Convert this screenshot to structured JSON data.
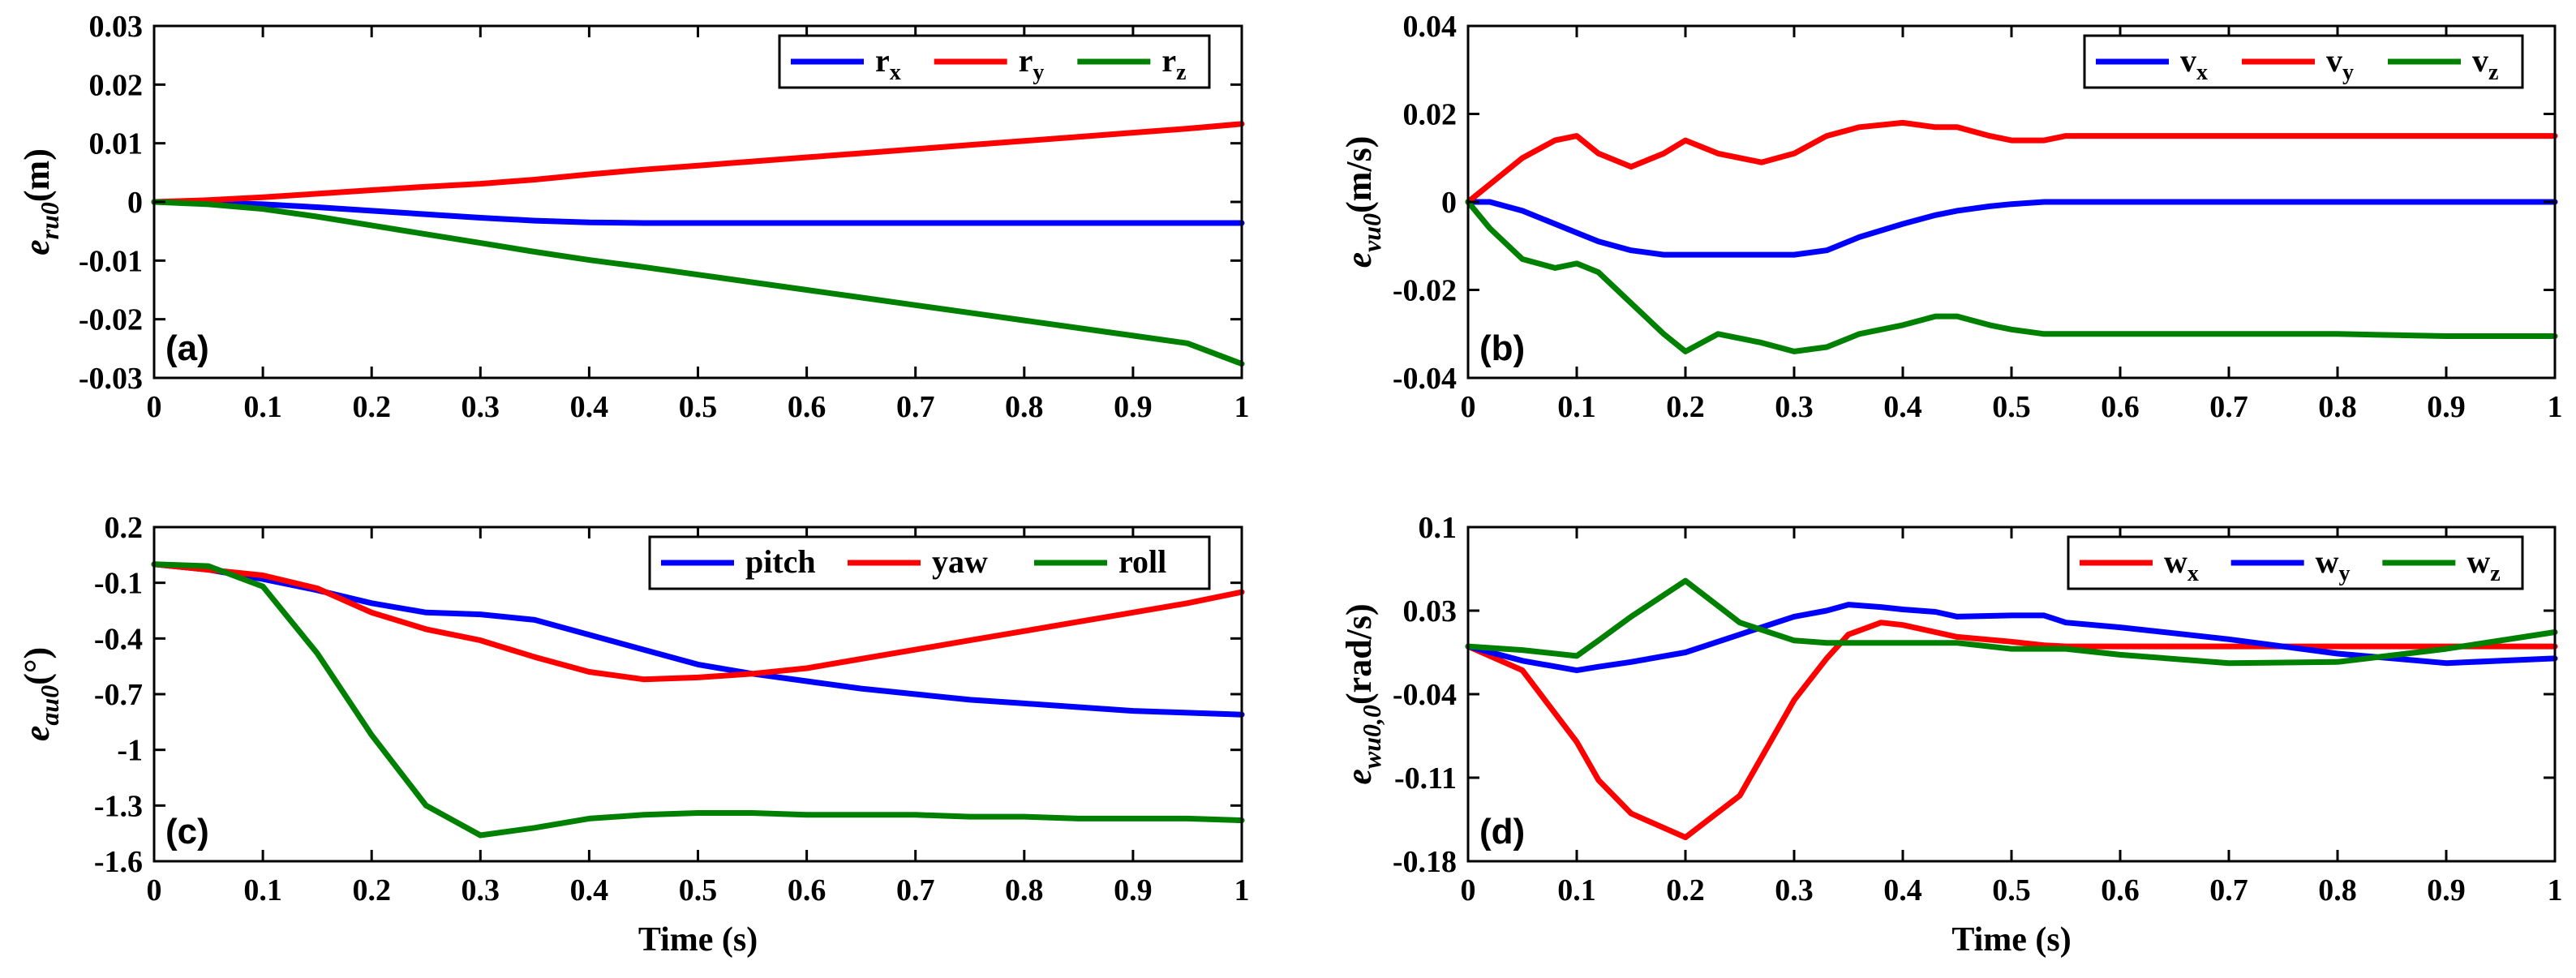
{
  "chart_data": [
    {
      "type": "line",
      "panel_label": "(a)",
      "ylabel_main": "e",
      "ylabel_sub": "ru0",
      "ylabel_unit": "(m)",
      "xlabel": "",
      "xlim": [
        0,
        1
      ],
      "ylim": [
        -0.03,
        0.03
      ],
      "xticks": [
        "0",
        "0.1",
        "0.2",
        "0.3",
        "0.4",
        "0.5",
        "0.6",
        "0.7",
        "0.8",
        "0.9",
        "1"
      ],
      "yticks": [
        "0.03",
        "0.02",
        "0.01",
        "0",
        "-0.01",
        "-0.02",
        "-0.03"
      ],
      "ytick_values": [
        0.03,
        0.02,
        0.01,
        0,
        -0.01,
        -0.02,
        -0.03
      ],
      "legend_position": "top-right",
      "x": [
        0,
        0.05,
        0.1,
        0.15,
        0.2,
        0.25,
        0.3,
        0.35,
        0.4,
        0.45,
        0.5,
        0.55,
        0.6,
        0.65,
        0.7,
        0.75,
        0.8,
        0.85,
        0.9,
        0.95,
        1
      ],
      "series": [
        {
          "name": "r",
          "sub": "x",
          "color": "#0000ff",
          "values": [
            0,
            -0.0001,
            -0.0004,
            -0.0009,
            -0.0015,
            -0.0021,
            -0.0027,
            -0.0032,
            -0.0035,
            -0.0036,
            -0.0036,
            -0.0036,
            -0.0036,
            -0.0036,
            -0.0036,
            -0.0036,
            -0.0036,
            -0.0036,
            -0.0036,
            -0.0036,
            -0.0036
          ]
        },
        {
          "name": "r",
          "sub": "y",
          "color": "#ff0000",
          "values": [
            0,
            0.0003,
            0.0008,
            0.0014,
            0.002,
            0.0026,
            0.0031,
            0.0038,
            0.0047,
            0.0055,
            0.0062,
            0.0069,
            0.0076,
            0.0083,
            0.009,
            0.0097,
            0.0104,
            0.0111,
            0.0118,
            0.0125,
            0.0133
          ]
        },
        {
          "name": "r",
          "sub": "z",
          "color": "#008000",
          "values": [
            0,
            -0.0004,
            -0.0012,
            -0.0025,
            -0.004,
            -0.0055,
            -0.007,
            -0.0085,
            -0.0099,
            -0.0111,
            -0.0124,
            -0.0137,
            -0.015,
            -0.0163,
            -0.0176,
            -0.0189,
            -0.0202,
            -0.0215,
            -0.0228,
            -0.0241,
            -0.0276
          ]
        }
      ]
    },
    {
      "type": "line",
      "panel_label": "(b)",
      "ylabel_main": "e",
      "ylabel_sub": "vu0",
      "ylabel_unit": "(m/s)",
      "xlabel": "",
      "xlim": [
        0,
        1
      ],
      "ylim": [
        -0.04,
        0.04
      ],
      "xticks": [
        "0",
        "0.1",
        "0.2",
        "0.3",
        "0.4",
        "0.5",
        "0.6",
        "0.7",
        "0.8",
        "0.9",
        "1"
      ],
      "yticks": [
        "0.04",
        "0.02",
        "0",
        "-0.02",
        "-0.04"
      ],
      "ytick_values": [
        0.04,
        0.02,
        0,
        -0.02,
        -0.04
      ],
      "legend_position": "top-right",
      "x": [
        0,
        0.02,
        0.05,
        0.08,
        0.1,
        0.12,
        0.15,
        0.18,
        0.2,
        0.23,
        0.27,
        0.3,
        0.33,
        0.36,
        0.4,
        0.43,
        0.45,
        0.48,
        0.5,
        0.53,
        0.55,
        0.6,
        0.7,
        0.8,
        0.9,
        1
      ],
      "series": [
        {
          "name": "v",
          "sub": "x",
          "color": "#0000ff",
          "values": [
            0,
            0.0,
            -0.002,
            -0.005,
            -0.007,
            -0.009,
            -0.011,
            -0.012,
            -0.012,
            -0.012,
            -0.012,
            -0.012,
            -0.011,
            -0.008,
            -0.005,
            -0.003,
            -0.002,
            -0.001,
            -0.0005,
            0,
            0,
            0,
            0,
            0,
            0,
            0
          ]
        },
        {
          "name": "v",
          "sub": "y",
          "color": "#ff0000",
          "values": [
            0,
            0.004,
            0.01,
            0.014,
            0.015,
            0.011,
            0.008,
            0.011,
            0.014,
            0.011,
            0.009,
            0.011,
            0.015,
            0.017,
            0.018,
            0.017,
            0.017,
            0.015,
            0.014,
            0.014,
            0.015,
            0.015,
            0.015,
            0.015,
            0.015,
            0.015
          ]
        },
        {
          "name": "v",
          "sub": "z",
          "color": "#008000",
          "values": [
            0,
            -0.006,
            -0.013,
            -0.015,
            -0.014,
            -0.016,
            -0.023,
            -0.03,
            -0.034,
            -0.03,
            -0.032,
            -0.034,
            -0.033,
            -0.03,
            -0.028,
            -0.026,
            -0.026,
            -0.028,
            -0.029,
            -0.03,
            -0.03,
            -0.03,
            -0.03,
            -0.03,
            -0.0305,
            -0.0305
          ]
        }
      ]
    },
    {
      "type": "line",
      "panel_label": "(c)",
      "ylabel_main": "e",
      "ylabel_sub": "au0",
      "ylabel_unit": "(°)",
      "xlabel": "Time (s)",
      "xlim": [
        0,
        1
      ],
      "ylim": [
        -1.6,
        0.2
      ],
      "xticks": [
        "0",
        "0.1",
        "0.2",
        "0.3",
        "0.4",
        "0.5",
        "0.6",
        "0.7",
        "0.8",
        "0.9",
        "1"
      ],
      "yticks": [
        "0.2",
        "-0.1",
        "-0.4",
        "-0.7",
        "-1",
        "-1.3",
        "-1.6"
      ],
      "ytick_values": [
        0.2,
        -0.1,
        -0.4,
        -0.7,
        -1.0,
        -1.3,
        -1.6
      ],
      "legend_position": "top-right",
      "x": [
        0,
        0.05,
        0.1,
        0.15,
        0.2,
        0.25,
        0.3,
        0.35,
        0.4,
        0.45,
        0.5,
        0.55,
        0.6,
        0.65,
        0.7,
        0.75,
        0.8,
        0.85,
        0.9,
        0.95,
        1
      ],
      "series": [
        {
          "name": "pitch",
          "sub": "",
          "color": "#0000ff",
          "values": [
            0,
            -0.03,
            -0.08,
            -0.14,
            -0.21,
            -0.26,
            -0.27,
            -0.3,
            -0.38,
            -0.46,
            -0.54,
            -0.59,
            -0.63,
            -0.67,
            -0.7,
            -0.73,
            -0.75,
            -0.77,
            -0.79,
            -0.8,
            -0.81
          ]
        },
        {
          "name": "yaw",
          "sub": "",
          "color": "#ff0000",
          "values": [
            0,
            -0.03,
            -0.06,
            -0.13,
            -0.26,
            -0.35,
            -0.41,
            -0.5,
            -0.58,
            -0.62,
            -0.61,
            -0.59,
            -0.56,
            -0.51,
            -0.46,
            -0.41,
            -0.36,
            -0.31,
            -0.26,
            -0.21,
            -0.15
          ]
        },
        {
          "name": "roll",
          "sub": "",
          "color": "#008000",
          "values": [
            0,
            -0.01,
            -0.12,
            -0.48,
            -0.92,
            -1.3,
            -1.46,
            -1.42,
            -1.37,
            -1.35,
            -1.34,
            -1.34,
            -1.35,
            -1.35,
            -1.35,
            -1.36,
            -1.36,
            -1.37,
            -1.37,
            -1.37,
            -1.38
          ]
        }
      ]
    },
    {
      "type": "line",
      "panel_label": "(d)",
      "ylabel_main": "e",
      "ylabel_sub": "wu0,0",
      "ylabel_unit": "(rad/s)",
      "xlabel": "Time (s)",
      "xlim": [
        0,
        1
      ],
      "ylim": [
        -0.18,
        0.1
      ],
      "xticks": [
        "0",
        "0.1",
        "0.2",
        "0.3",
        "0.4",
        "0.5",
        "0.6",
        "0.7",
        "0.8",
        "0.9",
        "1"
      ],
      "yticks": [
        "0.1",
        "0.03",
        "-0.04",
        "-0.11",
        "-0.18"
      ],
      "ytick_values": [
        0.1,
        0.03,
        -0.04,
        -0.11,
        -0.18
      ],
      "legend_position": "top-right",
      "x": [
        0,
        0.05,
        0.1,
        0.12,
        0.15,
        0.2,
        0.25,
        0.3,
        0.33,
        0.35,
        0.38,
        0.4,
        0.43,
        0.45,
        0.5,
        0.53,
        0.55,
        0.6,
        0.7,
        0.8,
        0.9,
        1
      ],
      "series": [
        {
          "name": "w",
          "sub": "x",
          "color": "#ff0000",
          "values": [
            0,
            -0.02,
            -0.08,
            -0.112,
            -0.14,
            -0.16,
            -0.125,
            -0.045,
            -0.01,
            0.01,
            0.02,
            0.018,
            0.012,
            0.008,
            0.004,
            0.001,
            0,
            0,
            0,
            0,
            0,
            0
          ]
        },
        {
          "name": "w",
          "sub": "y",
          "color": "#0000ff",
          "values": [
            0,
            -0.012,
            -0.02,
            -0.017,
            -0.013,
            -0.005,
            0.01,
            0.025,
            0.03,
            0.035,
            0.033,
            0.031,
            0.029,
            0.025,
            0.026,
            0.026,
            0.02,
            0.016,
            0.006,
            -0.006,
            -0.014,
            -0.01
          ]
        },
        {
          "name": "w",
          "sub": "z",
          "color": "#008000",
          "values": [
            0,
            -0.003,
            -0.008,
            0.005,
            0.025,
            0.055,
            0.02,
            0.005,
            0.003,
            0.003,
            0.003,
            0.003,
            0.003,
            0.003,
            -0.002,
            -0.002,
            -0.002,
            -0.007,
            -0.014,
            -0.013,
            -0.002,
            0.012
          ]
        }
      ]
    }
  ]
}
